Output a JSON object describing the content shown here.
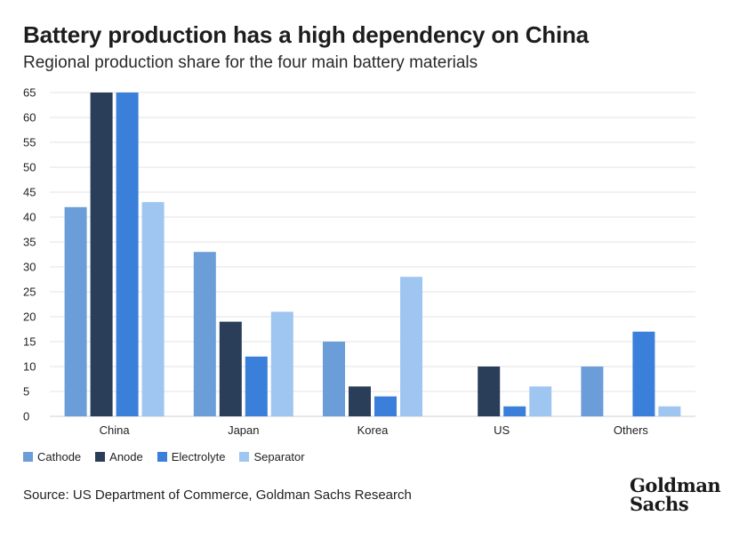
{
  "header": {
    "title": "Battery production has a high dependency on China",
    "subtitle": "Regional production share for the four main battery materials"
  },
  "footer": {
    "source": "Source: US Department of Commerce, Goldman Sachs Research",
    "logo_line1": "Goldman",
    "logo_line2": "Sachs"
  },
  "chart_data": {
    "type": "bar",
    "categories": [
      "China",
      "Japan",
      "Korea",
      "US",
      "Others"
    ],
    "series": [
      {
        "name": "Cathode",
        "color": "#6b9ed8",
        "values": [
          42,
          33,
          15,
          0,
          10
        ]
      },
      {
        "name": "Anode",
        "color": "#2b3e59",
        "values": [
          65,
          19,
          6,
          10,
          0
        ]
      },
      {
        "name": "Electrolyte",
        "color": "#3a7fd9",
        "values": [
          65,
          12,
          4,
          2,
          17
        ]
      },
      {
        "name": "Separator",
        "color": "#9fc6f0",
        "values": [
          43,
          21,
          28,
          6,
          2
        ]
      }
    ],
    "ylim": [
      0,
      65
    ],
    "yticks": [
      0,
      5,
      10,
      15,
      20,
      25,
      30,
      35,
      40,
      45,
      50,
      55,
      60,
      65
    ],
    "grid": true,
    "legend": "bottom-left"
  }
}
